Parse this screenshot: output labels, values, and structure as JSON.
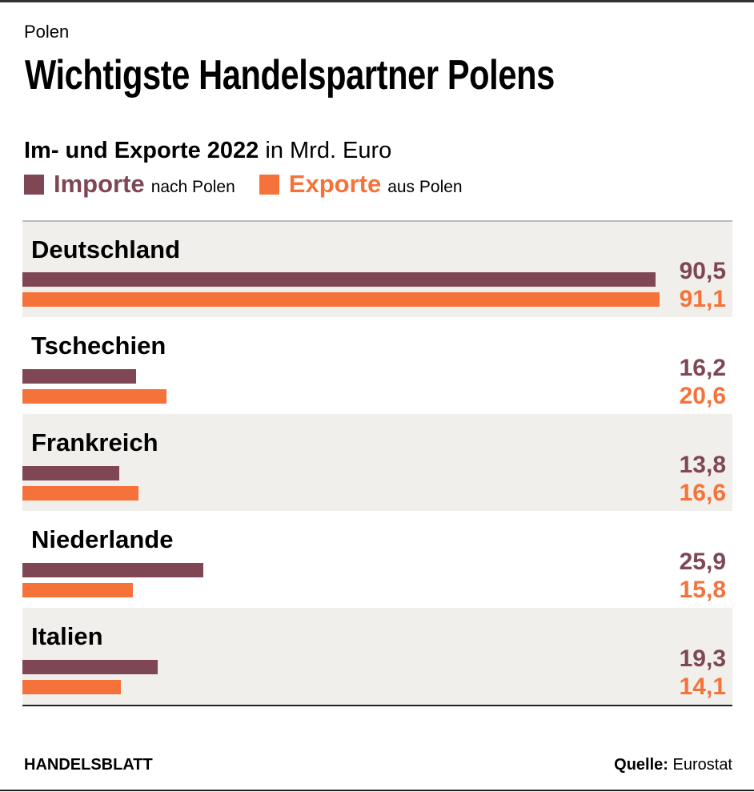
{
  "kicker": "Polen",
  "title": "Wichtigste Handelspartner Polens",
  "subtitle": {
    "bold": "Im- und Exporte 2022",
    "rest": " in Mrd. Euro"
  },
  "colors": {
    "import": "#7f4654",
    "export": "#f5733a",
    "row_shade": "#f0efec"
  },
  "chart_data": {
    "type": "bar",
    "orientation": "horizontal",
    "title": "Im- und Exporte 2022 in Mrd. Euro",
    "categories": [
      "Deutschland",
      "Tschechien",
      "Frankreich",
      "Niederlande",
      "Italien"
    ],
    "series": [
      {
        "name": "Importe",
        "suffix": "nach Polen",
        "color": "#7f4654",
        "values": [
          90.5,
          16.2,
          13.8,
          25.9,
          19.3
        ],
        "labels": [
          "90,5",
          "16,2",
          "13,8",
          "25,9",
          "19,3"
        ]
      },
      {
        "name": "Exporte",
        "suffix": "aus Polen",
        "color": "#f5733a",
        "values": [
          91.1,
          20.6,
          16.6,
          15.8,
          14.1
        ],
        "labels": [
          "91,1",
          "20,6",
          "16,6",
          "15,8",
          "14,1"
        ]
      }
    ],
    "xlim": [
      0,
      91.1
    ],
    "grid": false,
    "legend": "top-left"
  },
  "footer": {
    "brand": "HANDELSBLATT",
    "source_label": "Quelle:",
    "source": " Eurostat"
  }
}
